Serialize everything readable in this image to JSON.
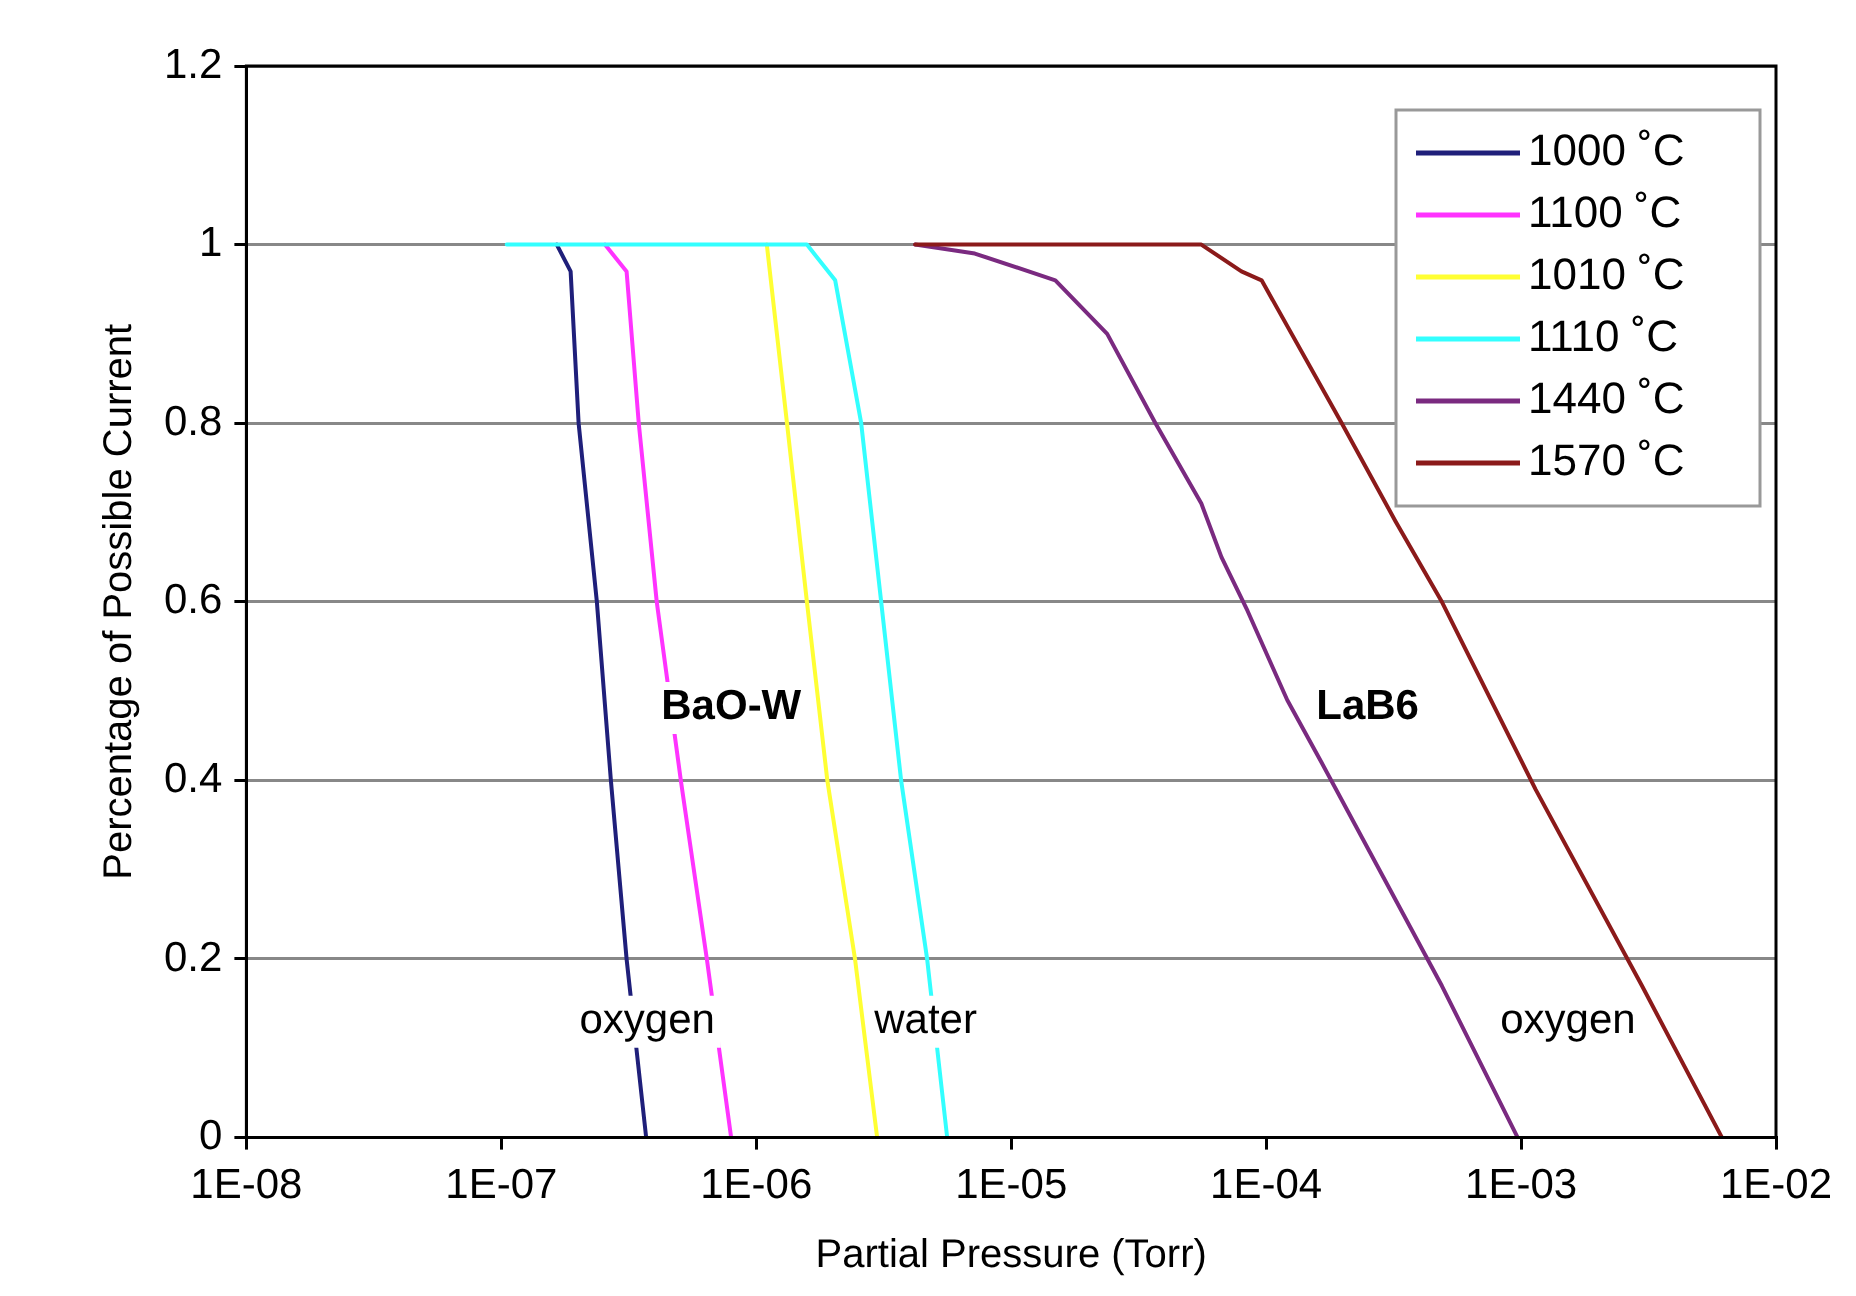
{
  "chart_data": {
    "type": "line",
    "xlabel": "Partial Pressure (Torr)",
    "ylabel": "Percentage of Possible Current",
    "log": "x",
    "grid": "y",
    "legend": "top right",
    "marker": "none",
    "line_style": "solid",
    "xlim": [
      1e-08,
      0.01
    ],
    "xticks": [
      {
        "value": 1e-08,
        "label": "1E-08"
      },
      {
        "value": 1e-07,
        "label": "1E-07"
      },
      {
        "value": 1e-06,
        "label": "1E-06"
      },
      {
        "value": 1e-05,
        "label": "1E-05"
      },
      {
        "value": 0.0001,
        "label": "1E-04"
      },
      {
        "value": 0.001,
        "label": "1E-03"
      },
      {
        "value": 0.01,
        "label": "1E-02"
      }
    ],
    "ylim": [
      0,
      1.2
    ],
    "yticks": [
      0,
      0.2,
      0.4,
      0.6,
      0.8,
      1,
      1.2
    ],
    "series": [
      {
        "name": "1000 ˚C",
        "color": "#1f1f7a",
        "x": [
          1.65e-07,
          1.87e-07,
          2.01e-07,
          2.37e-07,
          2.69e-07,
          3.1e-07,
          3.7e-07
        ],
        "values": [
          1,
          0.97,
          0.8,
          0.6,
          0.4,
          0.2,
          0
        ]
      },
      {
        "name": "1100 ˚C",
        "color": "#ff33ff",
        "x": [
          2.55e-07,
          3.1e-07,
          3.46e-07,
          4.07e-07,
          5.06e-07,
          6.4e-07,
          7.97e-07
        ],
        "values": [
          1,
          0.97,
          0.8,
          0.6,
          0.4,
          0.2,
          0
        ]
      },
      {
        "name": "1010 ˚C",
        "color": "#ffff33",
        "x": [
          1.1e-06,
          1.32e-06,
          1.58e-06,
          1.9e-06,
          2.44e-06,
          2.98e-06
        ],
        "values": [
          1,
          0.8,
          0.6,
          0.4,
          0.2,
          0
        ]
      },
      {
        "name": "1110 ˚C",
        "color": "#33ffff",
        "x": [
          1.05e-07,
          1.58e-06,
          2.04e-06,
          2.58e-06,
          3.09e-06,
          3.7e-06,
          4.68e-06,
          5.61e-06
        ],
        "values": [
          1,
          1,
          0.96,
          0.8,
          0.6,
          0.4,
          0.2,
          0
        ]
      },
      {
        "name": "1440 ˚C",
        "color": "#7a2a80",
        "x": [
          4.2e-06,
          7.2e-06,
          1.49e-05,
          2.38e-05,
          3.68e-05,
          5.57e-05,
          6.68e-05,
          8.45e-05,
          0.000121,
          0.000165,
          0.000489,
          0.00097
        ],
        "values": [
          1,
          0.99,
          0.96,
          0.9,
          0.8,
          0.71,
          0.65,
          0.59,
          0.49,
          0.42,
          0.17,
          0
        ]
      },
      {
        "name": "1570 ˚C",
        "color": "#8b1a1a",
        "x": [
          4.2e-06,
          5.57e-05,
          8e-05,
          9.6e-05,
          0.000198,
          0.000322,
          0.000489,
          0.00114,
          0.00298,
          0.00614
        ],
        "values": [
          1,
          1,
          0.97,
          0.96,
          0.8,
          0.69,
          0.6,
          0.39,
          0.17,
          0
        ]
      }
    ],
    "annotations": [
      "BaO-W",
      "oxygen",
      "water",
      "LaB6",
      "oxygen"
    ]
  }
}
